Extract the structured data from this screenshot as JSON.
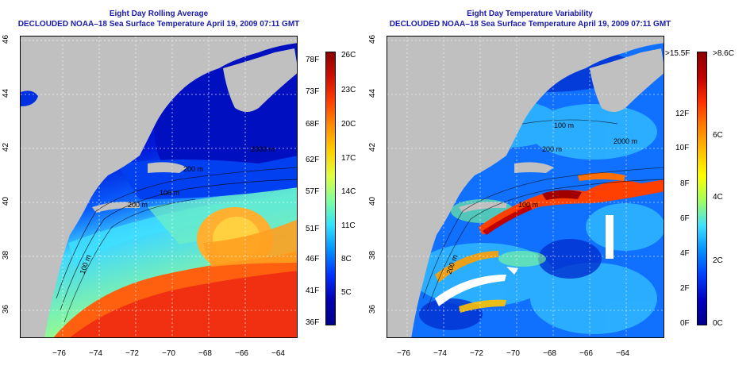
{
  "left_panel": {
    "title": "Eight Day Rolling Average",
    "subtitle": "DECLOUDED NOAA–18 Sea Surface Temperature April 19, 2009 07:11 GMT",
    "celsius_labels": [
      "26C",
      "23C",
      "20C",
      "17C",
      "14C",
      "11C",
      "8C",
      "5C"
    ],
    "fahrenheit_labels": [
      "78F",
      "73F",
      "68F",
      "62F",
      "57F",
      "51F",
      "46F",
      "41F",
      "36F"
    ],
    "contour_labels": [
      "2000 m",
      "200 m",
      "100 m",
      "200 m",
      "100 m"
    ]
  },
  "right_panel": {
    "title": "Eight Day Temperature Variability",
    "subtitle": "DECLOUDED NOAA–18 Sea Surface Temperature April 19, 2009 07:11 GMT",
    "celsius_labels": [
      ">8.6C",
      "6C",
      "4C",
      "2C",
      "0C"
    ],
    "fahrenheit_labels": [
      ">15.5F",
      "12F",
      "10F",
      "8F",
      "6F",
      "4F",
      "2F",
      "0F"
    ],
    "contour_labels": [
      "100 m",
      "2000 m",
      "200 m",
      "100 m",
      "200 m"
    ]
  },
  "axes": {
    "x_ticks": [
      "−76",
      "−74",
      "−72",
      "−70",
      "−68",
      "−66",
      "−64"
    ],
    "y_ticks": [
      "46",
      "44",
      "42",
      "40",
      "38",
      "36"
    ]
  },
  "colors": {
    "title": "#1a1aa8",
    "land": "#c0c0c0",
    "sst_scale": [
      "#00008b",
      "#0000ff",
      "#0080ff",
      "#00ffff",
      "#80ff80",
      "#ffff00",
      "#ff8000",
      "#ff0000",
      "#8b0000"
    ]
  }
}
